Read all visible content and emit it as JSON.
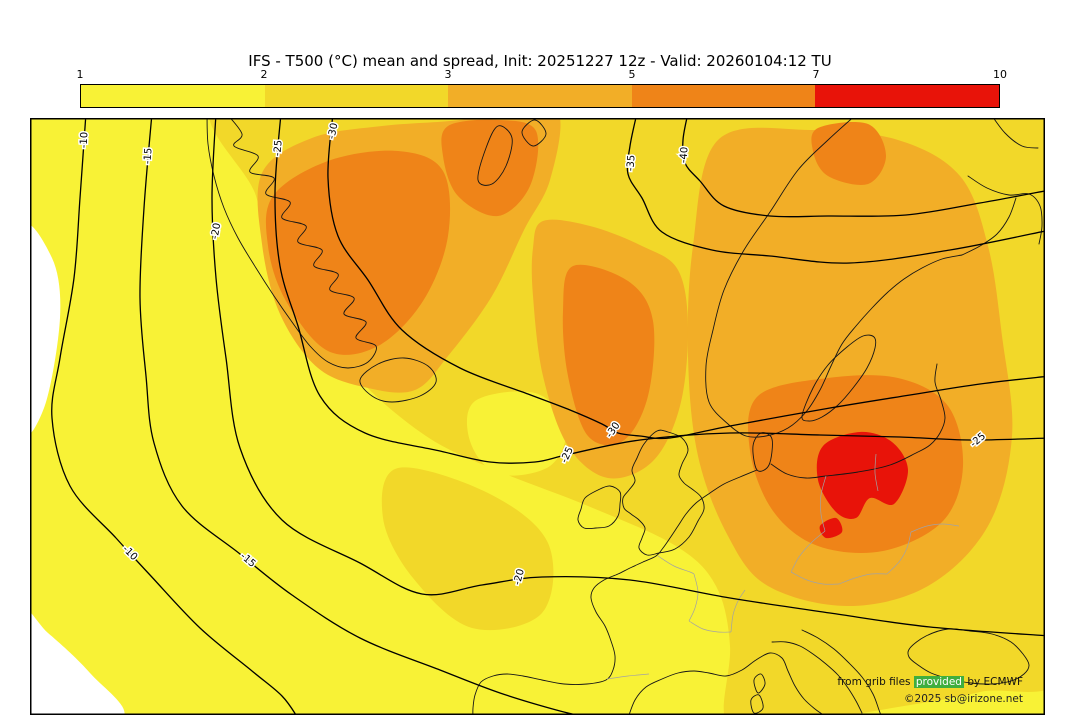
{
  "title": "IFS - T500 (°C) mean and spread, Init: 20251227 12z - Valid: 20260104:12 TU",
  "colorbar": {
    "ticks": [
      "1",
      "2",
      "3",
      "5",
      "7",
      "10"
    ],
    "colors": [
      "#f8f236",
      "#f2d829",
      "#f2ae27",
      "#ef8418",
      "#e81309"
    ]
  },
  "palette": {
    "below_min": "#ffffff",
    "spread_1_2": "#f8f236",
    "spread_2_3": "#f2d829",
    "spread_3_5": "#f2ae27",
    "spread_5_7": "#ef8418",
    "spread_7_10": "#e81309",
    "contour_line": "#000000",
    "coastline": "#161616",
    "country_border": "#a3a3a3",
    "highlight_green": "#3fae3f"
  },
  "map": {
    "contour_labels": [
      {
        "text": "-10"
      },
      {
        "text": "-15"
      },
      {
        "text": "-20"
      },
      {
        "text": "-25"
      },
      {
        "text": "-30"
      },
      {
        "text": "-35"
      },
      {
        "text": "-40"
      },
      {
        "text": "-30"
      },
      {
        "text": "-25"
      },
      {
        "text": "-25"
      },
      {
        "text": "-10"
      },
      {
        "text": "-15"
      },
      {
        "text": "-20"
      }
    ]
  },
  "credits": {
    "line1_pre": "from grib files ",
    "line1_highlight": "provided",
    "line1_post": " by ECMWF",
    "line2": "©2025 sb@irizone.net"
  },
  "chart_data": {
    "type": "heatmap",
    "title": "IFS - T500 (°C) mean and spread, Init: 20251227 12z - Valid: 20260104:12 TU",
    "model": "IFS",
    "variable": "T500 (°C) mean and spread",
    "init": "20251227 12z",
    "valid": "20260104:12 TU",
    "colorbar": {
      "ticks": [
        1,
        2,
        3,
        5,
        7,
        10
      ],
      "colors": [
        "#f8f236",
        "#f2d829",
        "#f2ae27",
        "#ef8418",
        "#e81309"
      ],
      "meaning": "ensemble spread (°C)"
    },
    "mean_contour_levels_labeled_c": [
      -40,
      -35,
      -30,
      -25,
      -20,
      -15,
      -10
    ],
    "legend_position": "top",
    "region": "North Atlantic / Europe"
  }
}
